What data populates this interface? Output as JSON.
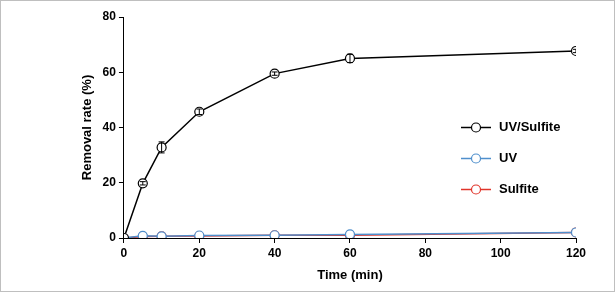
{
  "chart_data": {
    "type": "line",
    "x_label": "Time (min)",
    "y_label": "Removal rate (%)",
    "x": [
      0,
      5,
      10,
      20,
      40,
      60,
      120
    ],
    "series": [
      {
        "name": "UV/Sulfite",
        "color": "#000000",
        "values": [
          0,
          19.8,
          32.8,
          45.7,
          59.5,
          65.0,
          67.7
        ],
        "errors": [
          0,
          0.6,
          2.0,
          1.0,
          0.6,
          1.5,
          0.6
        ],
        "marker": "circle"
      },
      {
        "name": "UV",
        "color": "#4f8fcc",
        "values": [
          0,
          0.8,
          0.6,
          0.9,
          1.0,
          1.3,
          2.0
        ],
        "marker": "circle"
      },
      {
        "name": "Sulfite",
        "color": "#e0352b",
        "values": [
          0,
          0.5,
          0.6,
          0.7,
          1.0,
          1.0,
          2.0
        ],
        "marker": "circle"
      }
    ],
    "xlim": [
      0,
      120
    ],
    "xticks": [
      0,
      20,
      40,
      60,
      80,
      100,
      120
    ],
    "ylim": [
      0,
      80
    ],
    "yticks": [
      0,
      20,
      40,
      60,
      80
    ],
    "grid": false,
    "legend": "right"
  }
}
